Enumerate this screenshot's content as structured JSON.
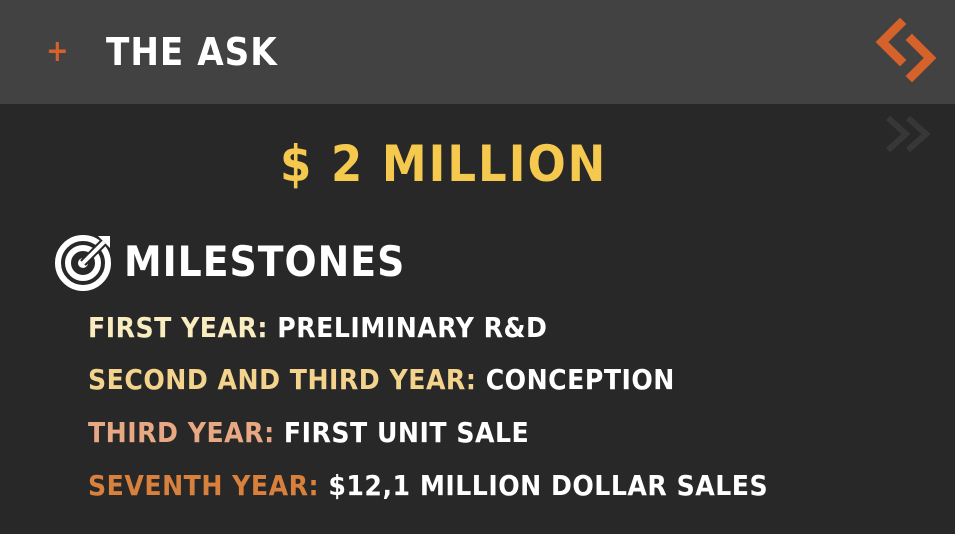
{
  "header": {
    "plus_icon": "+",
    "title": "THE ASK",
    "logo_icon": "chevron-logo-icon",
    "accent_color": "#d4622a"
  },
  "main": {
    "amount": "$ 2 MILLION",
    "amount_color": "#f5c84e",
    "milestones_heading": "MILESTONES",
    "milestones_icon": "target-icon",
    "milestones": [
      {
        "label": "FIRST YEAR:",
        "value": "PRELIMINARY R&D",
        "label_color": "#f8ecc0"
      },
      {
        "label": "SECOND AND THIRD YEAR:",
        "value": "CONCEPTION",
        "label_color": "#f4d38c"
      },
      {
        "label": "THIRD YEAR:",
        "value": "FIRST UNIT SALE",
        "label_color": "#e8a884"
      },
      {
        "label": "SEVENTH YEAR:",
        "value": "$12,1 MILLION DOLLAR SALES",
        "label_color": "#d8803c"
      }
    ]
  }
}
